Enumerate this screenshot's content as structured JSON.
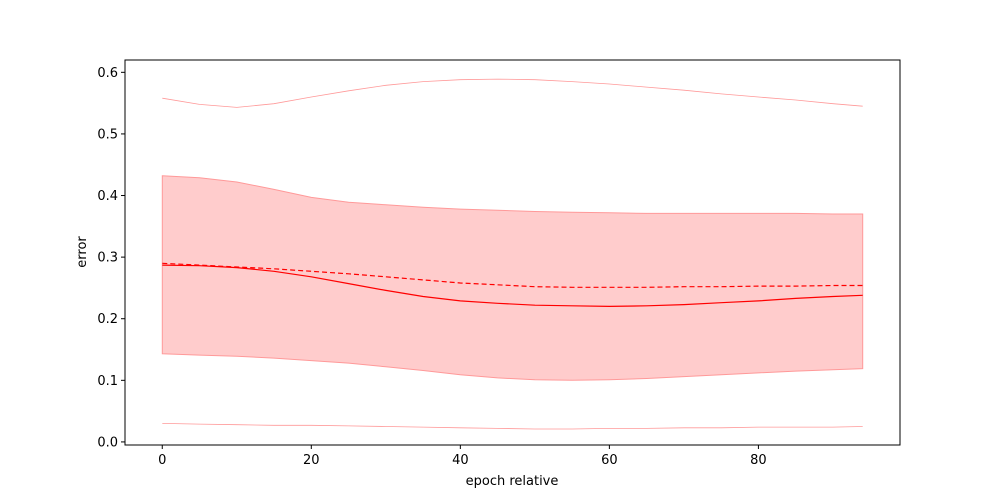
{
  "chart_data": {
    "type": "line",
    "title": "",
    "xlabel": "epoch relative",
    "ylabel": "error",
    "xlim": [
      -5,
      99
    ],
    "ylim": [
      -0.005,
      0.62
    ],
    "x_ticks": [
      0,
      20,
      40,
      60,
      80
    ],
    "x_tick_labels": [
      "0",
      "20",
      "40",
      "60",
      "80"
    ],
    "y_ticks": [
      0.0,
      0.1,
      0.2,
      0.3,
      0.4,
      0.5,
      0.6
    ],
    "y_tick_labels": [
      "0.0",
      "0.1",
      "0.2",
      "0.3",
      "0.4",
      "0.5",
      "0.6"
    ],
    "grid": false,
    "x": [
      0,
      5,
      10,
      15,
      20,
      25,
      30,
      35,
      40,
      45,
      50,
      55,
      60,
      65,
      70,
      75,
      80,
      85,
      90,
      94
    ],
    "series": [
      {
        "role": "mean",
        "style": "solid",
        "color": "#ff0000",
        "values": [
          0.287,
          0.286,
          0.283,
          0.277,
          0.268,
          0.257,
          0.246,
          0.236,
          0.229,
          0.225,
          0.222,
          0.221,
          0.22,
          0.221,
          0.223,
          0.226,
          0.229,
          0.233,
          0.236,
          0.238
        ]
      },
      {
        "role": "median",
        "style": "dashed",
        "color": "#ff0000",
        "values": [
          0.29,
          0.287,
          0.284,
          0.281,
          0.277,
          0.273,
          0.268,
          0.263,
          0.258,
          0.255,
          0.252,
          0.251,
          0.251,
          0.251,
          0.252,
          0.252,
          0.253,
          0.253,
          0.254,
          0.254
        ]
      },
      {
        "role": "band",
        "color": "#ff9999",
        "lower": [
          0.143,
          0.141,
          0.139,
          0.136,
          0.132,
          0.128,
          0.122,
          0.116,
          0.109,
          0.104,
          0.101,
          0.1,
          0.101,
          0.103,
          0.106,
          0.109,
          0.112,
          0.115,
          0.117,
          0.119
        ],
        "upper": [
          0.432,
          0.429,
          0.422,
          0.41,
          0.397,
          0.389,
          0.385,
          0.381,
          0.378,
          0.376,
          0.374,
          0.373,
          0.372,
          0.371,
          0.371,
          0.371,
          0.371,
          0.371,
          0.37,
          0.37
        ]
      },
      {
        "role": "max",
        "style": "thin",
        "color": "#ff9999",
        "values": [
          0.558,
          0.548,
          0.543,
          0.549,
          0.56,
          0.57,
          0.579,
          0.585,
          0.588,
          0.589,
          0.588,
          0.585,
          0.581,
          0.576,
          0.571,
          0.565,
          0.56,
          0.555,
          0.549,
          0.545
        ]
      },
      {
        "role": "min",
        "style": "thin",
        "color": "#ff9999",
        "values": [
          0.03,
          0.029,
          0.028,
          0.027,
          0.027,
          0.026,
          0.025,
          0.024,
          0.023,
          0.022,
          0.021,
          0.021,
          0.022,
          0.022,
          0.023,
          0.023,
          0.024,
          0.024,
          0.024,
          0.025
        ]
      }
    ]
  }
}
